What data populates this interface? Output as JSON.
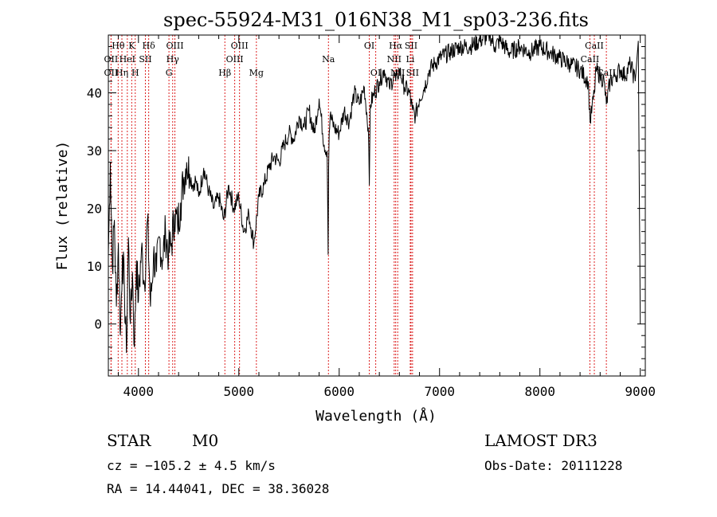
{
  "chart_data": {
    "type": "line",
    "title": "spec-55924-M31_016N38_M1_sp03-236.fits",
    "xlabel": "Wavelength (Å)",
    "ylabel": "Flux (relative)",
    "xlim": [
      3700,
      9050
    ],
    "ylim": [
      -9,
      50
    ],
    "xticks": [
      4000,
      5000,
      6000,
      7000,
      8000,
      9000
    ],
    "yticks": [
      0,
      10,
      20,
      30,
      40
    ],
    "grid": false,
    "series": [
      {
        "name": "flux",
        "color": "#000000",
        "x": [
          3700,
          3720,
          3740,
          3760,
          3780,
          3800,
          3820,
          3840,
          3860,
          3880,
          3900,
          3920,
          3940,
          3960,
          3980,
          4000,
          4030,
          4060,
          4090,
          4120,
          4150,
          4180,
          4210,
          4240,
          4270,
          4300,
          4330,
          4360,
          4390,
          4420,
          4450,
          4480,
          4510,
          4540,
          4570,
          4600,
          4650,
          4700,
          4750,
          4800,
          4850,
          4900,
          4950,
          5000,
          5050,
          5100,
          5150,
          5200,
          5250,
          5300,
          5350,
          5400,
          5450,
          5500,
          5550,
          5600,
          5650,
          5700,
          5750,
          5800,
          5850,
          5880,
          5890,
          5895,
          5900,
          5910,
          5950,
          6000,
          6050,
          6100,
          6150,
          6200,
          6250,
          6290,
          6300,
          6310,
          6350,
          6400,
          6450,
          6500,
          6550,
          6563,
          6580,
          6600,
          6650,
          6700,
          6730,
          6760,
          6800,
          6850,
          6900,
          6950,
          7000,
          7100,
          7200,
          7300,
          7400,
          7500,
          7550,
          7600,
          7700,
          7800,
          7900,
          8000,
          8100,
          8200,
          8300,
          8400,
          8480,
          8500,
          8542,
          8560,
          8600,
          8640,
          8662,
          8700,
          8750,
          8800,
          8850,
          8900,
          8950,
          8980,
          9000
        ],
        "y": [
          12,
          28,
          10,
          18,
          3,
          14,
          -2,
          12,
          6,
          -5,
          15,
          0,
          9,
          -4,
          11,
          4,
          13,
          7,
          18,
          3,
          12,
          9,
          15,
          11,
          16,
          12,
          14,
          19,
          17,
          21,
          25,
          28,
          26,
          24,
          25,
          22,
          27,
          23,
          20,
          22,
          18,
          24,
          20,
          22,
          16,
          19,
          14,
          22,
          24,
          27,
          29,
          28,
          31,
          33,
          32,
          36,
          34,
          37,
          33,
          39,
          31,
          30,
          12,
          27,
          33,
          36,
          34,
          33,
          37,
          35,
          40,
          38,
          41,
          34,
          24,
          38,
          40,
          42,
          44,
          41,
          43,
          42,
          43,
          44,
          41,
          40,
          37,
          36,
          39,
          41,
          44,
          45,
          46,
          47,
          48,
          48,
          49,
          50,
          48,
          49,
          47,
          48,
          47,
          48,
          47,
          46,
          45,
          44,
          42,
          35,
          40,
          44,
          43,
          42,
          38,
          42,
          43,
          44,
          43,
          45,
          42,
          49,
          0
        ]
      }
    ],
    "lines": [
      {
        "label": "Hθ",
        "x": 3798,
        "row": 1
      },
      {
        "label": "OII",
        "x": 3727,
        "row": 2
      },
      {
        "label": "OII",
        "x": 3727,
        "row": 3
      },
      {
        "label": "Hη",
        "x": 3835,
        "row": 3
      },
      {
        "label": "K",
        "x": 3933,
        "row": 1
      },
      {
        "label": "HeI",
        "x": 3889,
        "row": 2
      },
      {
        "label": "H",
        "x": 3968,
        "row": 3
      },
      {
        "label": "SII",
        "x": 4069,
        "row": 2
      },
      {
        "label": "Hδ",
        "x": 4102,
        "row": 1
      },
      {
        "label": "OIII",
        "x": 4363,
        "row": 1
      },
      {
        "label": "Hγ",
        "x": 4341,
        "row": 2
      },
      {
        "label": "G",
        "x": 4304,
        "row": 3
      },
      {
        "label": "OIII",
        "x": 5007,
        "row": 1
      },
      {
        "label": "OIII",
        "x": 4959,
        "row": 2
      },
      {
        "label": "Hβ",
        "x": 4861,
        "row": 3
      },
      {
        "label": "Mg",
        "x": 5175,
        "row": 3
      },
      {
        "label": "Na",
        "x": 5893,
        "row": 2
      },
      {
        "label": "OI",
        "x": 6300,
        "row": 1
      },
      {
        "label": "OI",
        "x": 6364,
        "row": 3
      },
      {
        "label": "Hα",
        "x": 6563,
        "row": 1
      },
      {
        "label": "NII",
        "x": 6548,
        "row": 2
      },
      {
        "label": "NII",
        "x": 6583,
        "row": 3
      },
      {
        "label": "SII",
        "x": 6716,
        "row": 1
      },
      {
        "label": "Li",
        "x": 6708,
        "row": 2
      },
      {
        "label": "SII",
        "x": 6731,
        "row": 3
      },
      {
        "label": "CaII",
        "x": 8542,
        "row": 1
      },
      {
        "label": "CaII",
        "x": 8498,
        "row": 2
      },
      {
        "label": "CaII",
        "x": 8662,
        "row": 3
      }
    ]
  },
  "footer": {
    "obj_class": "STAR",
    "subclass": "M0",
    "survey": "LAMOST DR3",
    "cz": "cz = −105.2 ± 4.5 km/s",
    "obs_date": "Obs-Date: 20111228",
    "radec": "RA =  14.44041, DEC =  38.36028"
  }
}
